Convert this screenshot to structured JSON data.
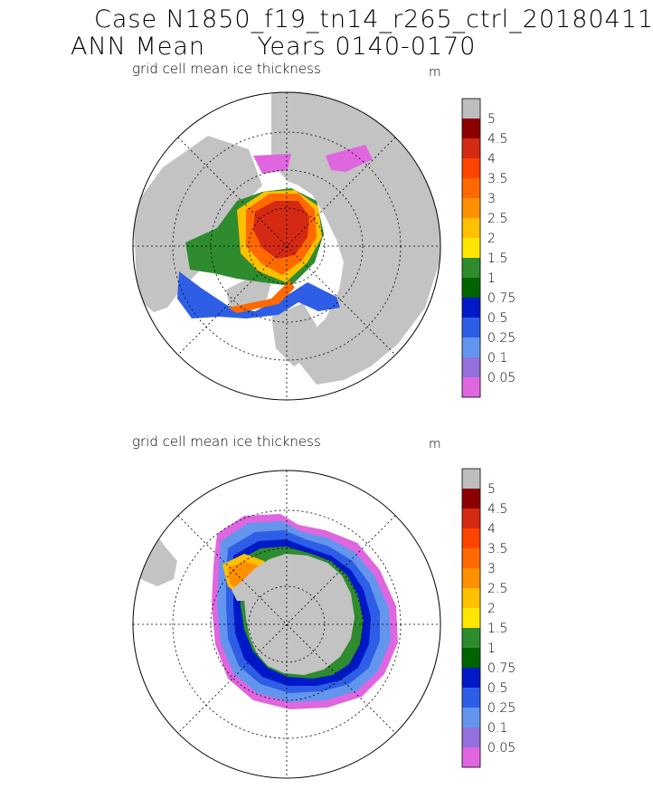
{
  "title_line1": "Case N1850_f19_tn14_r265_ctrl_20180411",
  "title_line2": "ANN Mean      Years 0140-0170",
  "panels": [
    {
      "subtitle": "grid cell mean ice thickness",
      "unit": "m",
      "hemisphere": "north"
    },
    {
      "subtitle": "grid cell mean ice thickness",
      "unit": "m",
      "hemisphere": "south"
    }
  ],
  "colorbar": {
    "levels": [
      "5",
      "4.5",
      "4",
      "3.5",
      "3",
      "2.5",
      "2",
      "1.5",
      "1",
      "0.75",
      "0.5",
      "0.25",
      "0.1",
      "0.05"
    ],
    "colors": [
      "#bebebe",
      "#8b0000",
      "#d42a14",
      "#ff4400",
      "#ff6a00",
      "#ff9100",
      "#ffc000",
      "#ffe600",
      "#2e8b2e",
      "#006400",
      "#0019c8",
      "#2e5ee6",
      "#6495ed",
      "#9370db",
      "#e066e0"
    ]
  },
  "colors": {
    "land": "#c3c3c3",
    "ocean": "#ffffff"
  }
}
